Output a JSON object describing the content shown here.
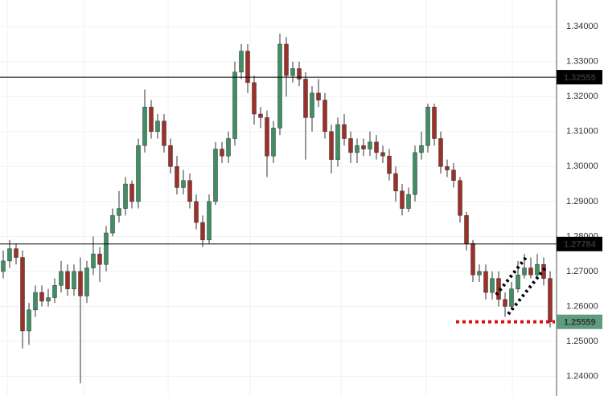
{
  "chart_data": {
    "type": "candlestick",
    "ylim": [
      1.23438,
      1.34762
    ],
    "yticks": [
      {
        "value": 1.24,
        "label": "1.24000"
      },
      {
        "value": 1.25,
        "label": "1.25000"
      },
      {
        "value": 1.26,
        "label": "1.26000"
      },
      {
        "value": 1.27,
        "label": "1.27000"
      },
      {
        "value": 1.28,
        "label": "1.28000"
      },
      {
        "value": 1.29,
        "label": "1.29000"
      },
      {
        "value": 1.3,
        "label": "1.30000"
      },
      {
        "value": 1.31,
        "label": "1.31000"
      },
      {
        "value": 1.32,
        "label": "1.32000"
      },
      {
        "value": 1.33,
        "label": "1.33000"
      },
      {
        "value": 1.34,
        "label": "1.34000"
      }
    ],
    "grid": true,
    "up_color": "#3f8f63",
    "down_color": "#9c3129",
    "wick_color": "#333333",
    "hlines": [
      {
        "value": 1.32555,
        "color": "#000000"
      },
      {
        "value": 1.27784,
        "color": "#000000"
      }
    ],
    "last_price_color": "#5e9c80",
    "support_color": "#e01010",
    "open": [
      1.27,
      1.273,
      1.2765,
      1.274,
      1.253,
      1.259,
      1.264,
      1.2615,
      1.2625,
      1.266,
      1.27,
      1.265,
      1.27,
      1.263,
      1.271,
      1.275,
      1.272,
      1.281,
      1.286,
      1.288,
      1.295,
      1.29,
      1.306,
      1.317,
      1.31,
      1.313,
      1.306,
      1.3,
      1.294,
      1.296,
      1.29,
      1.284,
      1.279,
      1.29,
      1.305,
      1.303,
      1.308,
      1.327,
      1.333,
      1.324,
      1.315,
      1.314,
      1.303,
      1.311,
      1.335,
      1.326,
      1.328,
      1.325,
      1.314,
      1.321,
      1.319,
      1.31,
      1.302,
      1.312,
      1.308,
      1.304,
      1.306,
      1.305,
      1.307,
      1.304,
      1.303,
      1.298,
      1.293,
      1.288,
      1.292,
      1.304,
      1.306,
      1.317,
      1.308,
      1.3,
      1.299,
      1.296,
      1.286,
      1.278,
      1.269,
      1.27,
      1.264,
      1.268,
      1.262,
      1.26,
      1.265,
      1.269,
      1.271,
      1.269,
      1.272,
      1.268
    ],
    "high": [
      1.276,
      1.279,
      1.278,
      1.276,
      1.261,
      1.266,
      1.266,
      1.265,
      1.268,
      1.273,
      1.272,
      1.272,
      1.274,
      1.273,
      1.28,
      1.277,
      1.283,
      1.288,
      1.293,
      1.297,
      1.296,
      1.308,
      1.322,
      1.319,
      1.315,
      1.315,
      1.308,
      1.303,
      1.299,
      1.298,
      1.292,
      1.286,
      1.292,
      1.307,
      1.307,
      1.31,
      1.33,
      1.335,
      1.335,
      1.326,
      1.317,
      1.316,
      1.313,
      1.338,
      1.337,
      1.33,
      1.33,
      1.327,
      1.323,
      1.325,
      1.321,
      1.312,
      1.314,
      1.315,
      1.31,
      1.308,
      1.308,
      1.31,
      1.309,
      1.306,
      1.305,
      1.3,
      1.295,
      1.294,
      1.306,
      1.31,
      1.318,
      1.318,
      1.31,
      1.302,
      1.301,
      1.297,
      1.287,
      1.279,
      1.272,
      1.272,
      1.27,
      1.27,
      1.264,
      1.267,
      1.273,
      1.275,
      1.274,
      1.275,
      1.274,
      1.27
    ],
    "low": [
      1.268,
      1.271,
      1.272,
      1.248,
      1.249,
      1.257,
      1.26,
      1.26,
      1.261,
      1.264,
      1.263,
      1.263,
      1.238,
      1.261,
      1.269,
      1.267,
      1.27,
      1.28,
      1.284,
      1.286,
      1.288,
      1.288,
      1.304,
      1.308,
      1.308,
      1.304,
      1.298,
      1.292,
      1.292,
      1.288,
      1.282,
      1.277,
      1.278,
      1.289,
      1.301,
      1.301,
      1.306,
      1.325,
      1.321,
      1.312,
      1.311,
      1.297,
      1.301,
      1.309,
      1.32,
      1.324,
      1.323,
      1.302,
      1.31,
      1.317,
      1.308,
      1.298,
      1.3,
      1.306,
      1.301,
      1.301,
      1.303,
      1.303,
      1.302,
      1.301,
      1.296,
      1.29,
      1.286,
      1.287,
      1.29,
      1.302,
      1.304,
      1.306,
      1.298,
      1.297,
      1.294,
      1.284,
      1.276,
      1.267,
      1.267,
      1.262,
      1.262,
      1.26,
      1.257,
      1.259,
      1.264,
      1.268,
      1.268,
      1.268,
      1.266,
      1.254
    ],
    "close": [
      1.273,
      1.2765,
      1.274,
      1.253,
      1.259,
      1.264,
      1.2615,
      1.2625,
      1.266,
      1.27,
      1.265,
      1.27,
      1.263,
      1.271,
      1.275,
      1.272,
      1.281,
      1.286,
      1.288,
      1.295,
      1.29,
      1.306,
      1.317,
      1.31,
      1.313,
      1.306,
      1.3,
      1.294,
      1.296,
      1.29,
      1.284,
      1.279,
      1.29,
      1.305,
      1.303,
      1.308,
      1.327,
      1.333,
      1.324,
      1.315,
      1.314,
      1.303,
      1.311,
      1.335,
      1.326,
      1.328,
      1.325,
      1.314,
      1.321,
      1.319,
      1.31,
      1.302,
      1.312,
      1.308,
      1.304,
      1.306,
      1.305,
      1.307,
      1.304,
      1.303,
      1.298,
      1.293,
      1.288,
      1.292,
      1.304,
      1.306,
      1.317,
      1.308,
      1.3,
      1.299,
      1.296,
      1.286,
      1.278,
      1.269,
      1.27,
      1.264,
      1.268,
      1.262,
      1.26,
      1.265,
      1.269,
      1.271,
      1.269,
      1.272,
      1.268,
      1.25559
    ]
  }
}
